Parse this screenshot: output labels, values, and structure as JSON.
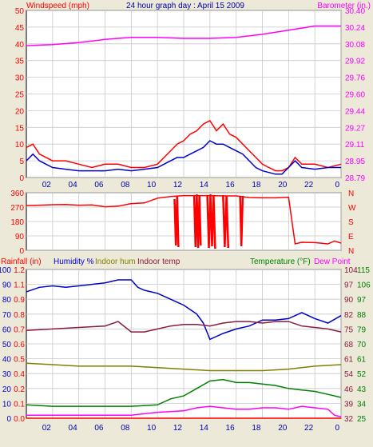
{
  "header": {
    "title": "24 hour graph day : April 15 2009",
    "left_axis_label": "Windspeed (mph)",
    "right_axis_label": "Barometer (in.)"
  },
  "legend2": {
    "rainfall": "Rainfall (in)",
    "humidity": "Humidity %",
    "indoor_hum": "Indoor hum",
    "indoor_temp": "Indoor temp",
    "temperature": "Temperature (°F)",
    "dew_point": "Dew Point"
  },
  "colors": {
    "windspeed": "#ff0000",
    "wind_avg": "#0000cc",
    "barometer": "#ff00ff",
    "wind_dir": "#ff0000",
    "humidity": "#0000cc",
    "indoor_hum": "#808000",
    "indoor_temp": "#8b1a40",
    "temperature": "#008000",
    "dew_point": "#ff00ff",
    "rainfall": "#ff0000"
  },
  "chart_data": [
    {
      "type": "line",
      "x_ticks": [
        "02",
        "04",
        "06",
        "08",
        "10",
        "12",
        "14",
        "16",
        "18",
        "20",
        "22",
        "0"
      ],
      "left_ticks": [
        "0",
        "5",
        "10",
        "15",
        "20",
        "25",
        "30",
        "35",
        "40",
        "45",
        "50"
      ],
      "right_ticks": [
        "28.79",
        "28.95",
        "29.11",
        "29.27",
        "29.44",
        "29.60",
        "29.76",
        "29.92",
        "30.08",
        "30.24",
        "30.40"
      ],
      "ylim_left": [
        0,
        50
      ],
      "ylim_right": [
        28.79,
        30.4
      ],
      "series": [
        {
          "name": "Windspeed (mph)",
          "axis": "left",
          "x": [
            0,
            0.5,
            1,
            1.5,
            2,
            3,
            4,
            5,
            6,
            7,
            8,
            9,
            10,
            10.5,
            11,
            11.5,
            12,
            12.5,
            13,
            13.5,
            14,
            14.5,
            15,
            15.5,
            16,
            16.5,
            17,
            17.5,
            18,
            18.5,
            19,
            19.5,
            20,
            20.5,
            21,
            22,
            23,
            24
          ],
          "values": [
            9,
            10,
            7,
            6,
            5,
            5,
            4,
            3,
            4,
            4,
            3,
            3,
            4,
            6,
            8,
            10,
            11,
            13,
            14,
            16,
            17,
            14,
            16,
            13,
            12,
            10,
            8,
            6,
            4,
            3,
            2,
            2,
            3,
            6,
            4,
            4,
            3,
            4
          ]
        },
        {
          "name": "Wind average",
          "axis": "left",
          "x": [
            0,
            0.5,
            1,
            1.5,
            2,
            3,
            4,
            5,
            6,
            7,
            8,
            9,
            10,
            10.5,
            11,
            11.5,
            12,
            12.5,
            13,
            13.5,
            14,
            14.5,
            15,
            15.5,
            16,
            16.5,
            17,
            17.5,
            18,
            18.5,
            19,
            19.5,
            20,
            20.5,
            21,
            22,
            23,
            24
          ],
          "values": [
            5,
            7,
            5,
            4,
            3,
            2.5,
            2,
            2,
            2,
            2.5,
            2,
            2.5,
            3,
            4,
            5,
            6,
            6,
            7,
            8,
            9,
            11,
            10,
            10,
            9,
            8,
            7,
            5,
            3,
            2,
            1.5,
            1,
            1,
            3,
            5,
            3,
            2.5,
            3,
            3
          ]
        },
        {
          "name": "Barometer (in.)",
          "axis": "right",
          "x": [
            0,
            2,
            4,
            6,
            8,
            10,
            12,
            14,
            16,
            18,
            20,
            22,
            24
          ],
          "values": [
            30.06,
            30.07,
            30.09,
            30.12,
            30.14,
            30.14,
            30.13,
            30.13,
            30.14,
            30.17,
            30.21,
            30.25,
            30.25
          ]
        }
      ]
    },
    {
      "type": "line",
      "x_ticks": [
        "02",
        "04",
        "06",
        "08",
        "10",
        "12",
        "14",
        "16",
        "18",
        "20",
        "22",
        "0"
      ],
      "left_ticks": [
        "0",
        "90",
        "180",
        "270",
        "360"
      ],
      "right_ticks": [
        "N",
        "E",
        "S",
        "W",
        "N"
      ],
      "ylim": [
        0,
        360
      ],
      "series": [
        {
          "name": "Wind direction",
          "x": [
            0,
            1,
            2,
            3,
            4,
            5,
            6,
            7,
            8,
            9,
            10,
            11,
            12,
            13,
            14,
            15,
            16,
            17,
            18,
            19,
            20,
            20.5,
            21,
            22,
            23,
            23.5,
            24
          ],
          "values": [
            280,
            282,
            285,
            286,
            282,
            284,
            272,
            276,
            292,
            296,
            326,
            336,
            342,
            342,
            342,
            340,
            340,
            330,
            328,
            328,
            332,
            40,
            50,
            48,
            40,
            58,
            45
          ],
          "gaps": [
            {
              "from": 11.3,
              "to": 11.6,
              "values": [
                320,
                30,
                340,
                20
              ]
            },
            {
              "from": 12.8,
              "to": 13.3,
              "values": [
                340,
                20,
                350,
                15,
                345,
                30
              ]
            },
            {
              "from": 13.8,
              "to": 14.4,
              "values": [
                340,
                15,
                350,
                25,
                345,
                10
              ]
            },
            {
              "from": 15.0,
              "to": 15.4,
              "values": [
                345,
                20,
                340,
                15
              ]
            },
            {
              "from": 16.3,
              "to": 16.5,
              "values": [
                340,
                25,
                340
              ]
            }
          ]
        }
      ]
    },
    {
      "type": "line",
      "x_ticks": [
        "02",
        "04",
        "06",
        "08",
        "10",
        "12",
        "14",
        "16",
        "18",
        "20",
        "22",
        "0"
      ],
      "left_ticks_humidity": [
        "0",
        "10",
        "20",
        "30",
        "40",
        "50",
        "60",
        "70",
        "80",
        "90",
        "100"
      ],
      "left_ticks_rain": [
        "0.0",
        "0.1",
        "0.2",
        "0.4",
        "0.5",
        "0.6",
        "0.7",
        "0.8",
        "0.9",
        "1.1",
        "1.2"
      ],
      "right_ticks_indoor": [
        "25",
        "34",
        "43",
        "52",
        "61",
        "70",
        "79",
        "88",
        "97",
        "106",
        "115"
      ],
      "right_ticks_outdoor": [
        "32",
        "39",
        "46",
        "54",
        "61",
        "68",
        "75",
        "82",
        "90",
        "97",
        "104"
      ],
      "ylim_humidity": [
        0,
        100
      ],
      "series": [
        {
          "name": "Humidity %",
          "axis": "humidity",
          "x": [
            0,
            1,
            2,
            3,
            4,
            5,
            6,
            7,
            8,
            8.5,
            9,
            10,
            11,
            12,
            13,
            13.5,
            14,
            15,
            16,
            17,
            18,
            19,
            20,
            21,
            22,
            23,
            24
          ],
          "values": [
            85,
            88,
            89,
            88,
            89,
            90,
            91,
            93,
            93,
            88,
            86,
            84,
            80,
            76,
            70,
            64,
            53,
            57,
            60,
            62,
            66,
            66,
            67,
            71,
            67,
            64,
            69
          ]
        },
        {
          "name": "Indoor temp",
          "axis": "humidity",
          "x": [
            0,
            2,
            4,
            6,
            7,
            8,
            9,
            10,
            11,
            12,
            13,
            14,
            15,
            16,
            17,
            18,
            19,
            20,
            21,
            22,
            23,
            24
          ],
          "values": [
            59,
            60,
            61,
            62,
            65,
            58,
            58,
            60,
            62,
            63,
            63,
            62,
            64,
            65,
            65,
            64,
            65,
            65,
            62,
            61,
            60,
            58
          ]
        },
        {
          "name": "Indoor hum",
          "axis": "humidity",
          "x": [
            0,
            2,
            4,
            6,
            8,
            10,
            12,
            14,
            16,
            18,
            20,
            22,
            24
          ],
          "values": [
            37,
            36,
            35,
            35,
            35,
            34,
            33,
            32,
            32,
            32,
            33,
            35,
            36
          ]
        },
        {
          "name": "Temperature (°F)",
          "axis": "humidity",
          "x": [
            0,
            2,
            4,
            6,
            8,
            10,
            11,
            12,
            13,
            14,
            15,
            16,
            17,
            18,
            19,
            20,
            21,
            22,
            23,
            24
          ],
          "values": [
            9,
            8,
            8,
            8,
            8,
            9,
            13,
            15,
            20,
            25,
            26,
            24,
            24,
            23,
            22,
            20,
            19,
            18,
            16,
            14
          ]
        },
        {
          "name": "Dew Point",
          "axis": "humidity",
          "x": [
            0,
            2,
            4,
            6,
            8,
            9,
            10,
            12,
            13,
            14,
            15,
            16,
            17,
            18,
            19,
            20,
            21,
            22,
            23,
            23.5,
            24
          ],
          "values": [
            2,
            2,
            2,
            2,
            2,
            3,
            4,
            5,
            7,
            8,
            7,
            6,
            6,
            7,
            7,
            6,
            8,
            7,
            6,
            2,
            1
          ]
        },
        {
          "name": "Rainfall (in)",
          "axis": "humidity",
          "x": [
            0,
            24
          ],
          "values": [
            0,
            0
          ]
        }
      ]
    }
  ]
}
